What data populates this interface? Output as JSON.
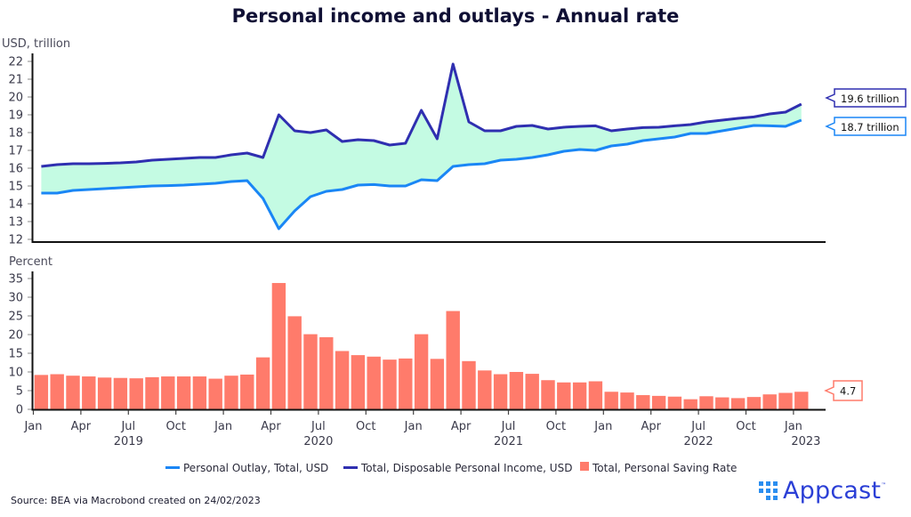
{
  "title": "Personal income and outlays - Annual rate",
  "source": "Source: BEA via Macrobond created on 24/02/2023",
  "logo": {
    "text": "Appcast",
    "tm": "™",
    "color": "#2b3fd6"
  },
  "colors": {
    "outlay": "#1a86f5",
    "income": "#2f2fb0",
    "fill": "#c4fbe3",
    "saving": "#ff7b6b"
  },
  "chart_data": [
    {
      "type": "area",
      "title": "Personal income and outlays - Annual rate",
      "ylabel": "USD, trillion",
      "ylim": [
        12,
        22
      ],
      "yticks": [
        "12",
        "13",
        "14",
        "15",
        "16",
        "17",
        "18",
        "19",
        "20",
        "21",
        "22"
      ],
      "x_start": "2019-01",
      "x_end": "2023-01",
      "series": [
        {
          "name": "Personal Outlay, Total, USD",
          "end_label": "18.7 trillion",
          "values": [
            14.6,
            14.6,
            14.75,
            14.8,
            14.85,
            14.9,
            14.95,
            15.0,
            15.02,
            15.05,
            15.1,
            15.15,
            15.25,
            15.3,
            14.3,
            12.6,
            13.6,
            14.4,
            14.7,
            14.8,
            15.05,
            15.08,
            15.0,
            15.0,
            15.35,
            15.3,
            16.1,
            16.2,
            16.25,
            16.45,
            16.5,
            16.6,
            16.75,
            16.95,
            17.05,
            17.0,
            17.25,
            17.35,
            17.55,
            17.65,
            17.75,
            17.95,
            17.95,
            18.1,
            18.25,
            18.4,
            18.38,
            18.35,
            18.7
          ]
        },
        {
          "name": "Total, Disposable Personal Income, USD",
          "end_label": "19.6 trillion",
          "values": [
            16.1,
            16.2,
            16.25,
            16.25,
            16.27,
            16.3,
            16.35,
            16.45,
            16.5,
            16.55,
            16.6,
            16.6,
            16.75,
            16.85,
            16.6,
            19.0,
            18.1,
            18.0,
            18.15,
            17.5,
            17.6,
            17.55,
            17.3,
            17.4,
            19.25,
            17.65,
            21.85,
            18.6,
            18.1,
            18.1,
            18.35,
            18.4,
            18.2,
            18.3,
            18.35,
            18.38,
            18.1,
            18.2,
            18.28,
            18.3,
            18.38,
            18.45,
            18.6,
            18.7,
            18.8,
            18.88,
            19.05,
            19.15,
            19.6
          ]
        }
      ]
    },
    {
      "type": "bar",
      "ylabel": "Percent",
      "ylim": [
        0,
        36
      ],
      "yticks": [
        "0",
        "5",
        "10",
        "15",
        "20",
        "25",
        "30",
        "35"
      ],
      "xticks": [
        "Jan",
        "Apr",
        "Jul",
        "Oct",
        "Jan",
        "Apr",
        "Jul",
        "Oct",
        "Jan",
        "Apr",
        "Jul",
        "Oct",
        "Jan",
        "Apr",
        "Jul",
        "Oct",
        "Jan"
      ],
      "xyears": [
        "2019",
        "2020",
        "2021",
        "2022",
        "2023"
      ],
      "series": [
        {
          "name": "Total, Personal Saving Rate",
          "end_label": "4.7",
          "values": [
            9.2,
            9.4,
            9.0,
            8.8,
            8.5,
            8.4,
            8.3,
            8.6,
            8.8,
            8.8,
            8.8,
            8.2,
            9.0,
            9.3,
            13.9,
            33.8,
            24.9,
            20.1,
            19.3,
            15.6,
            14.5,
            14.1,
            13.3,
            13.6,
            20.1,
            13.5,
            26.3,
            12.9,
            10.4,
            9.4,
            10.0,
            9.5,
            7.8,
            7.2,
            7.2,
            7.5,
            4.7,
            4.5,
            3.8,
            3.6,
            3.4,
            2.7,
            3.5,
            3.2,
            3.0,
            3.3,
            4.0,
            4.4,
            4.7
          ]
        }
      ]
    }
  ],
  "legend": [
    {
      "label": "Personal Outlay, Total, USD",
      "shape": "line",
      "color": "#1a86f5"
    },
    {
      "label": "Total, Disposable Personal Income, USD",
      "shape": "line",
      "color": "#2f2fb0"
    },
    {
      "label": "Total, Personal Saving Rate",
      "shape": "square",
      "color": "#ff7b6b"
    }
  ]
}
